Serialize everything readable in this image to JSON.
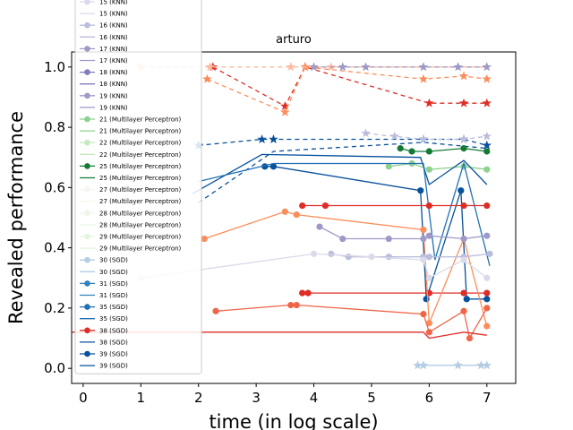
{
  "chart_data": {
    "type": "line",
    "title": "arturo",
    "xlabel": "time (in log scale)",
    "ylabel": "Revealed performance",
    "xlim": [
      -0.2,
      7.5
    ],
    "ylim": [
      -0.05,
      1.05
    ],
    "xticks": [
      "0",
      "1",
      "2",
      "3",
      "4",
      "5",
      "6",
      "7"
    ],
    "yticks": [
      "0.0",
      "0.2",
      "0.4",
      "0.6",
      "0.8",
      "1.0"
    ],
    "grid": false,
    "legend_position": "upper-left",
    "legend": [
      {
        "label": "15 (KNN)",
        "color": "#dadaeb",
        "style": "marker"
      },
      {
        "label": "15 (KNN)",
        "color": "#dadaeb",
        "style": "line"
      },
      {
        "label": "16 (KNN)",
        "color": "#bcbddc",
        "style": "marker"
      },
      {
        "label": "16 (KNN)",
        "color": "#bcbddc",
        "style": "line"
      },
      {
        "label": "17 (KNN)",
        "color": "#9e9ac8",
        "style": "marker"
      },
      {
        "label": "17 (KNN)",
        "color": "#9e9ac8",
        "style": "line"
      },
      {
        "label": "18 (KNN)",
        "color": "#807dba",
        "style": "marker"
      },
      {
        "label": "18 (KNN)",
        "color": "#807dba",
        "style": "line"
      },
      {
        "label": "19 (KNN)",
        "color": "#9e9ac8",
        "style": "marker"
      },
      {
        "label": "19 (KNN)",
        "color": "#9e9ac8",
        "style": "line"
      },
      {
        "label": "21 (Multilayer Perceptron)",
        "color": "#8fd18f",
        "style": "marker"
      },
      {
        "label": "21 (Multilayer Perceptron)",
        "color": "#8fd18f",
        "style": "line"
      },
      {
        "label": "22 (Multilayer Perceptron)",
        "color": "#c7e9c0",
        "style": "marker"
      },
      {
        "label": "22 (Multilayer Perceptron)",
        "color": "#c7e9c0",
        "style": "line"
      },
      {
        "label": "25 (Multilayer Perceptron)",
        "color": "#137a34",
        "style": "marker"
      },
      {
        "label": "25 (Multilayer Perceptron)",
        "color": "#137a34",
        "style": "line"
      },
      {
        "label": "27 (Multilayer Perceptron)",
        "color": "#f2f8ef",
        "style": "marker"
      },
      {
        "label": "27 (Multilayer Perceptron)",
        "color": "#f2f8ef",
        "style": "line"
      },
      {
        "label": "28 (Multilayer Perceptron)",
        "color": "#edf7e9",
        "style": "marker"
      },
      {
        "label": "28 (Multilayer Perceptron)",
        "color": "#edf7e9",
        "style": "line"
      },
      {
        "label": "29 (Multilayer Perceptron)",
        "color": "#e3f4dd",
        "style": "marker"
      },
      {
        "label": "29 (Multilayer Perceptron)",
        "color": "#e3f4dd",
        "style": "line"
      },
      {
        "label": "30 (SGD)",
        "color": "#b3cde3",
        "style": "marker"
      },
      {
        "label": "30 (SGD)",
        "color": "#b3cde3",
        "style": "line"
      },
      {
        "label": "31 (SGD)",
        "color": "#3182bd",
        "style": "marker"
      },
      {
        "label": "31 (SGD)",
        "color": "#3182bd",
        "style": "line"
      },
      {
        "label": "35 (SGD)",
        "color": "#2171b5",
        "style": "marker"
      },
      {
        "label": "35 (SGD)",
        "color": "#2171b5",
        "style": "line"
      },
      {
        "label": "38 (SGD)",
        "color": "#de2d26",
        "style": "marker"
      },
      {
        "label": "38 (SGD)",
        "color": "#08519c",
        "style": "line"
      },
      {
        "label": "39 (SGD)",
        "color": "#08519c",
        "style": "marker"
      },
      {
        "label": "39 (SGD)",
        "color": "#08519c",
        "style": "line"
      }
    ],
    "series": [
      {
        "color": "#de2d26",
        "dash": true,
        "marker": "star",
        "x": [
          2.25,
          3.5,
          3.85,
          6.0,
          6.6,
          7.0
        ],
        "y": [
          1.0,
          0.87,
          1.0,
          0.88,
          0.88,
          0.88
        ]
      },
      {
        "color": "#fc8d59",
        "dash": true,
        "marker": "star",
        "x": [
          2.15,
          3.5,
          3.85,
          5.9,
          6.6,
          7.0
        ],
        "y": [
          0.96,
          0.85,
          1.0,
          0.96,
          0.97,
          0.96
        ]
      },
      {
        "color": "#fcbba1",
        "dash": true,
        "marker": "star",
        "x": [
          1.0,
          2.2,
          3.6,
          4.3,
          5.9,
          6.5,
          7.0
        ],
        "y": [
          1.0,
          1.0,
          1.0,
          1.0,
          1.0,
          1.0,
          1.0
        ]
      },
      {
        "color": "#9e9ac8",
        "dash": true,
        "marker": "star",
        "x": [
          4.0,
          4.5,
          4.9,
          5.9,
          6.5,
          7.0
        ],
        "y": [
          1.0,
          1.0,
          1.0,
          1.0,
          1.0,
          1.0
        ]
      },
      {
        "color": "#08519c",
        "dash": true,
        "marker": "star",
        "x": [
          2.0,
          3.1,
          3.3,
          5.9,
          6.6,
          7.0
        ],
        "y": [
          0.74,
          0.76,
          0.76,
          0.76,
          0.76,
          0.74
        ]
      },
      {
        "color": "#08519c",
        "dash": true,
        "marker": "none",
        "x": [
          2.0,
          3.3,
          5.9,
          7.0
        ],
        "y": [
          0.55,
          0.72,
          0.75,
          0.73
        ]
      },
      {
        "color": "#bcbddc",
        "dash": true,
        "marker": "star",
        "x": [
          4.9,
          5.4,
          5.9,
          6.6,
          7.0
        ],
        "y": [
          0.78,
          0.77,
          0.76,
          0.76,
          0.77
        ]
      },
      {
        "color": "#137a34",
        "dash": false,
        "marker": "circle",
        "x": [
          5.5,
          5.7,
          6.0,
          6.6,
          7.0
        ],
        "y": [
          0.73,
          0.72,
          0.72,
          0.73,
          0.72
        ]
      },
      {
        "color": "#8fd18f",
        "dash": false,
        "marker": "circle",
        "x": [
          5.3,
          5.7,
          6.0,
          6.6,
          7.0
        ],
        "y": [
          0.67,
          0.68,
          0.66,
          0.67,
          0.66
        ]
      },
      {
        "color": "#08519c",
        "dash": false,
        "marker": "circle",
        "x": [
          3.15,
          3.3,
          5.85,
          5.95,
          6.55,
          6.65,
          7.0
        ],
        "y": [
          0.67,
          0.67,
          0.59,
          0.23,
          0.59,
          0.23,
          0.23
        ]
      },
      {
        "color": "#08519c",
        "dash": false,
        "marker": "none",
        "x": [
          1.9,
          3.1,
          5.85,
          6.0,
          6.6,
          7.0
        ],
        "y": [
          0.58,
          0.71,
          0.7,
          0.61,
          0.69,
          0.61
        ]
      },
      {
        "color": "#2171b5",
        "dash": false,
        "marker": "none",
        "x": [
          2.0,
          3.3,
          5.9,
          6.1,
          6.6,
          7.05
        ],
        "y": [
          0.62,
          0.68,
          0.68,
          0.36,
          0.68,
          0.34
        ]
      },
      {
        "color": "#de2d26",
        "dash": false,
        "marker": "circle",
        "x": [
          3.8,
          4.2,
          6.0,
          6.6,
          7.0
        ],
        "y": [
          0.54,
          0.54,
          0.54,
          0.54,
          0.54
        ]
      },
      {
        "color": "#de2d26",
        "dash": false,
        "marker": "circle",
        "x": [
          3.8,
          3.9,
          6.0,
          6.6,
          7.0
        ],
        "y": [
          0.25,
          0.25,
          0.25,
          0.25,
          0.25
        ]
      },
      {
        "color": "#fc8d59",
        "dash": false,
        "marker": "circle",
        "x": [
          2.1,
          3.5,
          3.7,
          5.9,
          6.0,
          6.6,
          7.0
        ],
        "y": [
          0.43,
          0.52,
          0.51,
          0.46,
          0.15,
          0.43,
          0.14
        ]
      },
      {
        "color": "#ef6548",
        "dash": false,
        "marker": "circle",
        "x": [
          2.3,
          3.6,
          3.7,
          5.9,
          6.0,
          6.6,
          6.7,
          7.0
        ],
        "y": [
          0.19,
          0.21,
          0.21,
          0.18,
          0.12,
          0.19,
          0.1,
          0.2
        ]
      },
      {
        "color": "#de2d26",
        "dash": false,
        "marker": "none",
        "x": [
          -0.2,
          5.9,
          6.0,
          6.6,
          7.0
        ],
        "y": [
          0.12,
          0.12,
          0.1,
          0.12,
          0.11
        ]
      },
      {
        "color": "#9e9ac8",
        "dash": false,
        "marker": "circle",
        "x": [
          4.1,
          4.5,
          5.3,
          5.9,
          6.0,
          6.6,
          7.0
        ],
        "y": [
          0.47,
          0.43,
          0.43,
          0.43,
          0.44,
          0.43,
          0.44
        ]
      },
      {
        "color": "#bcbddc",
        "dash": false,
        "marker": "circle",
        "x": [
          4.3,
          4.6,
          5.3,
          5.9,
          6.0,
          6.6,
          7.05
        ],
        "y": [
          0.38,
          0.37,
          0.37,
          0.37,
          0.37,
          0.37,
          0.38
        ]
      },
      {
        "color": "#dadaeb",
        "dash": false,
        "marker": "circle",
        "x": [
          1.0,
          4.0,
          5.0,
          5.9,
          6.0,
          6.6,
          7.0
        ],
        "y": [
          0.3,
          0.38,
          0.37,
          0.36,
          0.3,
          0.36,
          0.3
        ]
      },
      {
        "color": "#b3cde3",
        "dash": false,
        "marker": "star",
        "x": [
          5.8,
          5.9,
          6.5,
          6.9,
          7.0
        ],
        "y": [
          0.01,
          0.01,
          0.01,
          0.01,
          0.01
        ]
      }
    ]
  }
}
